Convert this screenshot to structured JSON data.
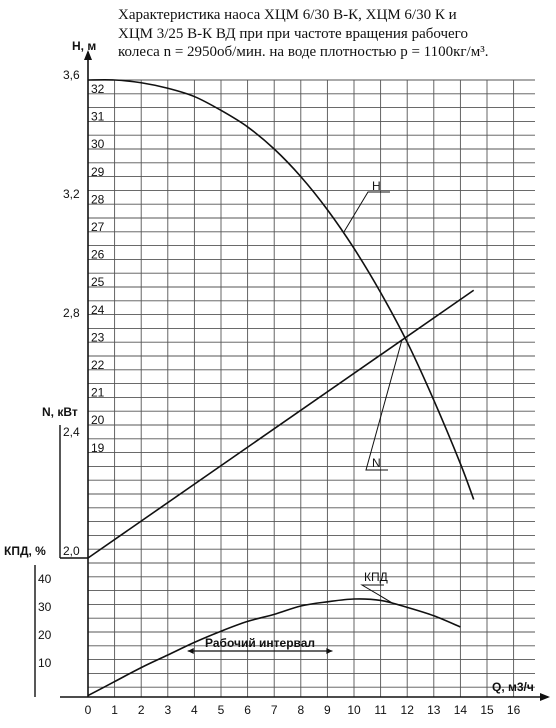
{
  "title": {
    "line1": "Характеристика наоса ХЦМ 6/30 В-К,  ХЦМ 6/30 К и",
    "line2": "ХЦМ 3/25 В-К ВД  при при частоте вращения рабочего",
    "line3": "колеса n = 2950об/мин. на воде плотностью p = 1100кг/м³."
  },
  "chart_data": {
    "type": "line",
    "x_axis": {
      "label": "Q, м3/ч",
      "ticks": [
        "0",
        "1",
        "2",
        "3",
        "4",
        "5",
        "6",
        "7",
        "8",
        "9",
        "10",
        "11",
        "12",
        "13",
        "14",
        "15",
        "16"
      ],
      "xlim": [
        0,
        16
      ]
    },
    "y_axes": {
      "head": {
        "label": "Н, м",
        "ticks": [
          "19",
          "20",
          "21",
          "22",
          "23",
          "24",
          "25",
          "26",
          "27",
          "28",
          "29",
          "30",
          "31",
          "32"
        ],
        "ylim": [
          19,
          32
        ]
      },
      "power": {
        "label": "N, кВт",
        "ticks": [
          "2,0",
          "2,4",
          "2,8",
          "3,2",
          "3,6"
        ],
        "ylim": [
          2.0,
          3.6
        ]
      },
      "efficiency": {
        "label": "КПД, %",
        "ticks": [
          "10",
          "20",
          "30",
          "40"
        ],
        "ylim": [
          0,
          40
        ]
      }
    },
    "series": [
      {
        "name": "Н",
        "axis": "head",
        "x": [
          0,
          1,
          2,
          3,
          4,
          5,
          6,
          7,
          8,
          9,
          10,
          11,
          12,
          13,
          14,
          14.5
        ],
        "y": [
          32.0,
          32.0,
          31.9,
          31.7,
          31.4,
          30.9,
          30.3,
          29.5,
          28.5,
          27.3,
          25.9,
          24.3,
          22.5,
          20.4,
          18.1,
          16.8
        ]
      },
      {
        "name": "N",
        "axis": "power",
        "x": [
          0,
          14.5
        ],
        "y": [
          2.0,
          2.9
        ]
      },
      {
        "name": "КПД",
        "axis": "efficiency",
        "x": [
          0,
          1,
          2,
          3,
          4,
          5,
          6,
          7,
          8,
          9,
          10,
          11,
          12,
          13,
          14
        ],
        "y": [
          0.5,
          5.5,
          10.5,
          15,
          19.5,
          23.5,
          27,
          29.5,
          32.5,
          34,
          35,
          34.5,
          32,
          29,
          25
        ]
      }
    ],
    "annotations": {
      "working_interval": "Рабочий интервал",
      "interval_range": [
        4.5,
        9.0
      ]
    },
    "grid": true
  }
}
